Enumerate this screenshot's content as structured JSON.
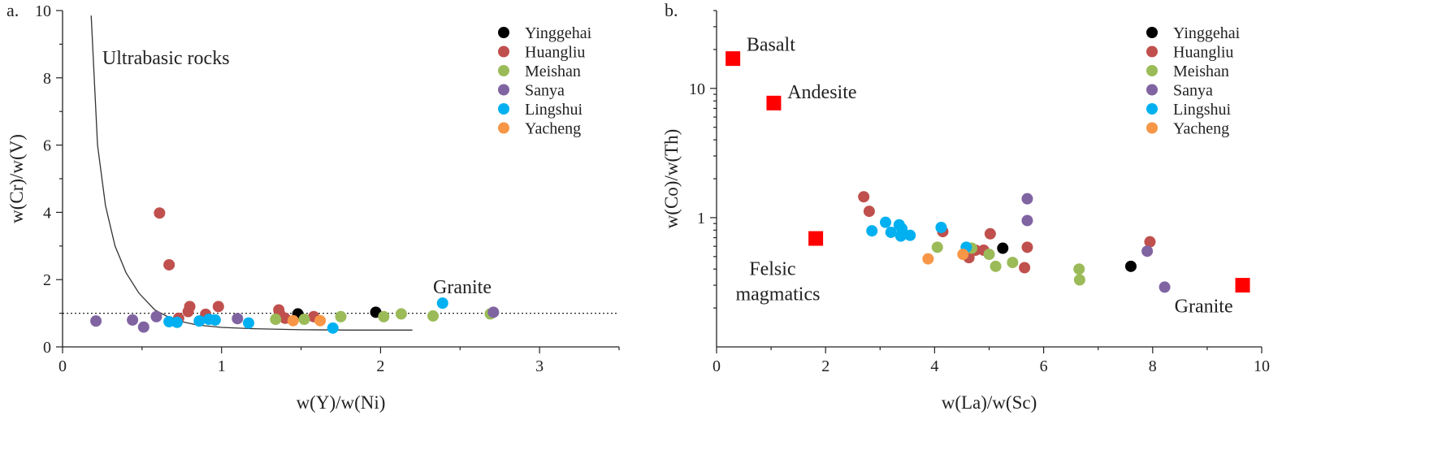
{
  "series_colors": {
    "Yinggehai": "#000000",
    "Huangliu": "#c0504d",
    "Meishan": "#9bbb59",
    "Sanya": "#8064a2",
    "Lingshui": "#00b0f0",
    "Yacheng": "#f79646"
  },
  "chart_data": [
    {
      "id": "a",
      "type": "scatter",
      "panel_label": "a.",
      "xlabel": "w(Y)/w(Ni)",
      "ylabel": "w(Cr)/w(V)",
      "xlim": [
        0,
        3.5
      ],
      "ylim": [
        0,
        10
      ],
      "xscale": "linear",
      "yscale": "linear",
      "xticks": [
        0,
        1,
        2,
        3
      ],
      "xtick_labels": [
        "0",
        "1",
        "2",
        "3"
      ],
      "xminor": [
        0.5,
        1.5,
        2.5,
        3.5
      ],
      "yticks": [
        0,
        2,
        4,
        6,
        8,
        10
      ],
      "ytick_labels": [
        "0",
        "2",
        "4",
        "6",
        "8",
        "10"
      ],
      "yminor": [
        1,
        3,
        5,
        7,
        9
      ],
      "legend": [
        "Yinggehai",
        "Huangliu",
        "Meishan",
        "Sanya",
        "Lingshui",
        "Yacheng"
      ],
      "legend_position": "top-right",
      "reference_line": {
        "y": 1,
        "style": "dotted"
      },
      "curve": {
        "x": [
          0.18,
          0.22,
          0.27,
          0.33,
          0.4,
          0.48,
          0.58,
          0.7,
          0.85,
          1.0,
          1.2,
          1.5,
          1.8,
          2.2
        ],
        "y": [
          9.85,
          6.0,
          4.2,
          3.0,
          2.2,
          1.6,
          1.1,
          0.8,
          0.65,
          0.58,
          0.54,
          0.51,
          0.5,
          0.5
        ]
      },
      "annotations": [
        {
          "text": "Ultrabasic rocks",
          "x": 0.25,
          "y": 8.4
        },
        {
          "text": "Granite",
          "x": 2.33,
          "y": 1.6
        }
      ],
      "series": [
        {
          "name": "Yinggehai",
          "points": [
            [
              1.48,
              0.98
            ],
            [
              1.97,
              1.03
            ]
          ]
        },
        {
          "name": "Huangliu",
          "points": [
            [
              0.61,
              3.98
            ],
            [
              0.67,
              2.44
            ],
            [
              0.8,
              1.2
            ],
            [
              0.79,
              1.05
            ],
            [
              0.98,
              1.2
            ],
            [
              0.9,
              0.97
            ],
            [
              0.73,
              0.85
            ],
            [
              1.36,
              1.1
            ],
            [
              1.37,
              0.95
            ],
            [
              1.4,
              0.85
            ],
            [
              1.58,
              0.9
            ]
          ]
        },
        {
          "name": "Meishan",
          "points": [
            [
              1.34,
              0.82
            ],
            [
              1.52,
              0.82
            ],
            [
              1.75,
              0.9
            ],
            [
              2.02,
              0.9
            ],
            [
              2.13,
              0.98
            ],
            [
              2.33,
              0.92
            ],
            [
              2.69,
              0.98
            ]
          ]
        },
        {
          "name": "Sanya",
          "points": [
            [
              0.21,
              0.77
            ],
            [
              0.44,
              0.8
            ],
            [
              0.51,
              0.59
            ],
            [
              0.59,
              0.9
            ],
            [
              1.1,
              0.84
            ],
            [
              2.71,
              1.03
            ]
          ]
        },
        {
          "name": "Lingshui",
          "points": [
            [
              0.67,
              0.75
            ],
            [
              0.72,
              0.73
            ],
            [
              0.86,
              0.77
            ],
            [
              0.92,
              0.82
            ],
            [
              0.96,
              0.8
            ],
            [
              1.17,
              0.71
            ],
            [
              1.7,
              0.56
            ],
            [
              2.39,
              1.3
            ]
          ]
        },
        {
          "name": "Yacheng",
          "points": [
            [
              1.45,
              0.78
            ],
            [
              1.62,
              0.78
            ]
          ]
        }
      ]
    },
    {
      "id": "b",
      "type": "scatter",
      "panel_label": "b.",
      "xlabel": "w(La)/w(Sc)",
      "ylabel": "w(Co)/w(Th)",
      "xlim": [
        0,
        10
      ],
      "ylim": [
        0.1,
        40
      ],
      "xscale": "linear",
      "yscale": "log",
      "xticks": [
        0,
        2,
        4,
        6,
        8,
        10
      ],
      "xtick_labels": [
        "0",
        "2",
        "4",
        "6",
        "8",
        "10"
      ],
      "xminor": [
        1,
        3,
        5,
        7,
        9
      ],
      "yticks": [
        1,
        10
      ],
      "ytick_labels": [
        "1",
        "10"
      ],
      "legend": [
        "Yinggehai",
        "Huangliu",
        "Meishan",
        "Sanya",
        "Lingshui",
        "Yacheng"
      ],
      "legend_position": "top-right",
      "references": [
        {
          "name": "Basalt",
          "x": 0.3,
          "y": 17
        },
        {
          "name": "Andesite",
          "x": 1.05,
          "y": 7.7
        },
        {
          "name": "Felsic magmatics",
          "x": 1.82,
          "y": 0.69
        },
        {
          "name": "Granite",
          "x": 9.65,
          "y": 0.3
        }
      ],
      "annotations": [
        {
          "text": "Basalt",
          "x": 0.55,
          "y": 19.5
        },
        {
          "text": "Andesite",
          "x": 1.3,
          "y": 8.4
        },
        {
          "text": "Felsic",
          "x": 0.6,
          "y": 0.36
        },
        {
          "text": "magmatics",
          "x": 0.35,
          "y": 0.23
        },
        {
          "text": "Granite",
          "x": 8.4,
          "y": 0.185
        }
      ],
      "series": [
        {
          "name": "Yinggehai",
          "points": [
            [
              5.25,
              0.58
            ],
            [
              7.6,
              0.42
            ]
          ]
        },
        {
          "name": "Huangliu",
          "points": [
            [
              2.7,
              1.45
            ],
            [
              2.8,
              1.12
            ],
            [
              4.15,
              0.78
            ],
            [
              4.63,
              0.49
            ],
            [
              4.75,
              0.56
            ],
            [
              4.9,
              0.56
            ],
            [
              5.02,
              0.75
            ],
            [
              5.65,
              0.41
            ],
            [
              5.7,
              0.59
            ],
            [
              7.95,
              0.65
            ]
          ]
        },
        {
          "name": "Meishan",
          "points": [
            [
              4.05,
              0.59
            ],
            [
              4.68,
              0.58
            ],
            [
              5.0,
              0.52
            ],
            [
              5.12,
              0.42
            ],
            [
              5.43,
              0.45
            ],
            [
              6.65,
              0.4
            ],
            [
              6.66,
              0.33
            ]
          ]
        },
        {
          "name": "Sanya",
          "points": [
            [
              5.7,
              1.4
            ],
            [
              5.7,
              0.95
            ],
            [
              7.9,
              0.55
            ],
            [
              8.22,
              0.29
            ]
          ]
        },
        {
          "name": "Lingshui",
          "points": [
            [
              2.85,
              0.79
            ],
            [
              3.1,
              0.92
            ],
            [
              3.2,
              0.77
            ],
            [
              3.35,
              0.88
            ],
            [
              3.4,
              0.82
            ],
            [
              3.55,
              0.73
            ],
            [
              3.38,
              0.72
            ],
            [
              4.12,
              0.84
            ],
            [
              4.58,
              0.59
            ]
          ]
        },
        {
          "name": "Yacheng",
          "points": [
            [
              3.88,
              0.48
            ],
            [
              4.52,
              0.52
            ]
          ]
        }
      ]
    }
  ]
}
